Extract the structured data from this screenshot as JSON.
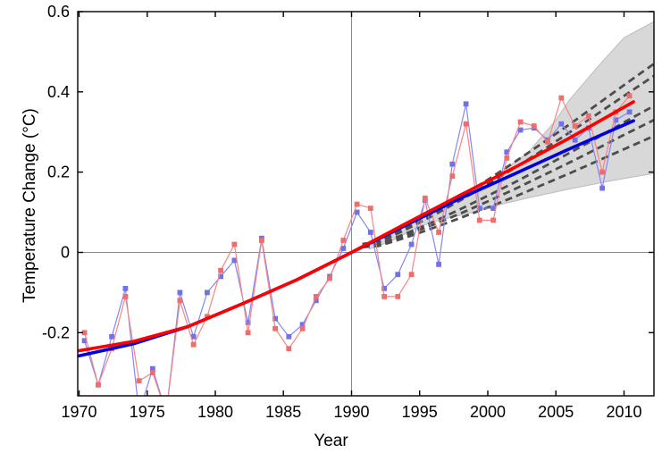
{
  "figure": {
    "title": "",
    "xlabel": "Year",
    "ylabel": "Temperature Change (°C)"
  },
  "chart_data": {
    "type": "line",
    "title": "",
    "xlabel": "Year",
    "ylabel": "Temperature Change (°C)",
    "xlim": [
      1969.9,
      2012.2
    ],
    "ylim": [
      -0.3575,
      0.6
    ],
    "x_ticks": [
      1970,
      1975,
      1980,
      1985,
      1990,
      1995,
      2000,
      2005,
      2010
    ],
    "x_tick_labels": [
      "1970",
      "1975",
      "1980",
      "1985",
      "1990",
      "1995",
      "2000",
      "2005",
      "2010"
    ],
    "y_ticks": [
      -0.2,
      0,
      0.2,
      0.4,
      0.6
    ],
    "y_tick_labels": [
      "-0.2",
      "0",
      "0.2",
      "0.4",
      "0.6"
    ],
    "grid": false,
    "legend": "none",
    "marker_x_offset": 0.4,
    "reference_lines": {
      "horizontal_y": 0,
      "vertical_x": 1990,
      "color": "#8a8a8a"
    },
    "uncertainty_band": {
      "name": "projection-uncertainty-range",
      "fill": "#d8d8d8",
      "edge": "#bcbcbc",
      "top_x": [
        1991.3,
        1993,
        1995,
        1997,
        1999,
        2001,
        2003,
        2005,
        2006,
        2008,
        2010,
        2012.2
      ],
      "top_v": [
        0.02,
        0.045,
        0.085,
        0.12,
        0.155,
        0.2,
        0.25,
        0.33,
        0.38,
        0.46,
        0.535,
        0.575
      ],
      "bottom_x": [
        1991.3,
        1993,
        1995,
        1997,
        1999,
        2001,
        2003,
        2006,
        2009,
        2012.2
      ],
      "bottom_v": [
        0.008,
        0.03,
        0.065,
        0.085,
        0.1,
        0.12,
        0.136,
        0.158,
        0.178,
        0.197
      ]
    },
    "projection_lines": {
      "name": "projection-scenario-lines",
      "color": "#4d4d4d",
      "style": "dashed",
      "x": [
        1990.8,
        1992,
        1994,
        1996,
        1998,
        2000,
        2002,
        2004,
        2006,
        2008,
        2010,
        2012.2
      ],
      "lines": [
        [
          0.021,
          0.026,
          0.061,
          0.098,
          0.139,
          0.181,
          0.226,
          0.272,
          0.319,
          0.368,
          0.417,
          0.47
        ],
        [
          0.02,
          0.025,
          0.057,
          0.092,
          0.13,
          0.17,
          0.211,
          0.254,
          0.299,
          0.344,
          0.39,
          0.44
        ],
        [
          0.016,
          0.02,
          0.047,
          0.076,
          0.108,
          0.141,
          0.175,
          0.211,
          0.248,
          0.285,
          0.324,
          0.365
        ],
        [
          0.015,
          0.018,
          0.043,
          0.069,
          0.097,
          0.127,
          0.158,
          0.191,
          0.224,
          0.258,
          0.293,
          0.33
        ],
        [
          0.013,
          0.016,
          0.037,
          0.061,
          0.086,
          0.112,
          0.139,
          0.168,
          0.197,
          0.227,
          0.257,
          0.29
        ]
      ]
    },
    "series": [
      {
        "name": "observed-annual-blue",
        "kind": "jagged",
        "color": "#8787f0",
        "marker_color": "#7272e6",
        "line_width": 1.2,
        "years": [
          1970,
          1971,
          1972,
          1973,
          1974,
          1975,
          1976,
          1977,
          1978,
          1979,
          1980,
          1981,
          1982,
          1983,
          1984,
          1985,
          1986,
          1987,
          1988,
          1989,
          1990,
          1991,
          1992,
          1993,
          1994,
          1995,
          1996,
          1997,
          1998,
          1999,
          2000,
          2001,
          2002,
          2003,
          2004,
          2005,
          2006,
          2007,
          2008,
          2009,
          2010
        ],
        "values": [
          -0.22,
          -0.33,
          -0.21,
          -0.09,
          -0.4,
          -0.29,
          -0.4,
          -0.1,
          -0.21,
          -0.1,
          -0.06,
          -0.02,
          -0.175,
          0.035,
          -0.165,
          -0.21,
          -0.18,
          -0.12,
          -0.06,
          0.01,
          0.1,
          0.05,
          -0.09,
          -0.055,
          0.02,
          0.13,
          -0.03,
          0.22,
          0.37,
          0.11,
          0.11,
          0.25,
          0.305,
          0.31,
          0.28,
          0.32,
          0.28,
          0.31,
          0.16,
          0.33,
          0.35
        ]
      },
      {
        "name": "observed-annual-red",
        "kind": "jagged",
        "color": "#f58585",
        "marker_color": "#ee6e6e",
        "line_width": 1.2,
        "years": [
          1970,
          1971,
          1972,
          1973,
          1974,
          1975,
          1976,
          1977,
          1978,
          1979,
          1980,
          1981,
          1982,
          1983,
          1984,
          1985,
          1986,
          1987,
          1988,
          1989,
          1990,
          1991,
          1992,
          1993,
          1994,
          1995,
          1996,
          1997,
          1998,
          1999,
          2000,
          2001,
          2002,
          2003,
          2004,
          2005,
          2006,
          2007,
          2008,
          2009,
          2010
        ],
        "values": [
          -0.2,
          -0.33,
          -0.24,
          -0.11,
          -0.32,
          -0.3,
          -0.4,
          -0.12,
          -0.23,
          -0.16,
          -0.045,
          0.02,
          -0.2,
          0.03,
          -0.19,
          -0.24,
          -0.19,
          -0.11,
          -0.065,
          0.03,
          0.12,
          0.11,
          -0.11,
          -0.11,
          -0.055,
          0.135,
          0.05,
          0.19,
          0.32,
          0.08,
          0.08,
          0.235,
          0.325,
          0.315,
          0.275,
          0.385,
          0.315,
          0.34,
          0.2,
          0.35,
          0.39
        ]
      },
      {
        "name": "smoothed-trend-blue",
        "kind": "smooth",
        "color": "#0000dd",
        "line_width": 3.6,
        "years": [
          1970,
          1974,
          1978,
          1982,
          1986,
          1990,
          1994,
          1998,
          2002,
          2006,
          2010.7
        ],
        "values": [
          -0.258,
          -0.228,
          -0.185,
          -0.128,
          -0.068,
          0,
          0.068,
          0.135,
          0.196,
          0.258,
          0.328
        ]
      },
      {
        "name": "smoothed-trend-red",
        "kind": "smooth",
        "color": "#ff0000",
        "line_width": 3.6,
        "years": [
          1970,
          1974,
          1978,
          1982,
          1986,
          1990,
          1994,
          1998,
          2002,
          2006,
          2010.7
        ],
        "values": [
          -0.245,
          -0.222,
          -0.185,
          -0.128,
          -0.068,
          0,
          0.072,
          0.143,
          0.212,
          0.285,
          0.375
        ]
      }
    ]
  }
}
